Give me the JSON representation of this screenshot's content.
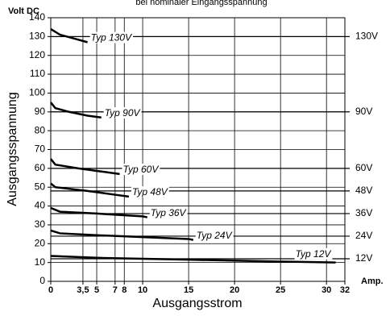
{
  "chart_data": {
    "type": "line",
    "title": "bei nominaler Eingangsspannung",
    "y_unit": "Volt DC",
    "x_unit": "Amp.",
    "y_label": "Ausgangsspannung",
    "x_label": "Ausgangsstrom",
    "xlim": [
      0,
      32
    ],
    "ylim": [
      0,
      140
    ],
    "y2lim": [
      0,
      140
    ],
    "xticks": [
      0,
      {
        "value": 3.5,
        "label": "3,5"
      },
      5,
      7,
      8,
      10,
      15,
      20,
      25,
      30,
      32
    ],
    "yticks": [
      0,
      10,
      20,
      30,
      40,
      50,
      60,
      70,
      80,
      90,
      100,
      110,
      120,
      130,
      140
    ],
    "y2ticks": [
      {
        "value": 12,
        "label": "12V"
      },
      {
        "value": 24,
        "label": "24V"
      },
      {
        "value": 36,
        "label": "36V"
      },
      {
        "value": 48,
        "label": "48V"
      },
      {
        "value": 60,
        "label": "60V"
      },
      {
        "value": 90,
        "label": "90V"
      },
      {
        "value": 130,
        "label": "130V"
      }
    ],
    "grid": true,
    "series": [
      {
        "name": "Typ 130V",
        "color": "#000000",
        "x": [
          0,
          1,
          2.5,
          4
        ],
        "values": [
          134,
          131,
          129,
          127
        ]
      },
      {
        "name": "Typ 90V",
        "color": "#000000",
        "x": [
          0,
          0.5,
          2,
          4,
          5.5
        ],
        "values": [
          95,
          92,
          90,
          88,
          87
        ]
      },
      {
        "name": "Typ 60V",
        "color": "#000000",
        "x": [
          0,
          0.5,
          3,
          6,
          7.5
        ],
        "values": [
          65,
          62,
          60,
          58,
          57
        ]
      },
      {
        "name": "Typ 48V",
        "color": "#000000",
        "x": [
          0,
          0.5,
          4,
          7,
          8.5
        ],
        "values": [
          52,
          50,
          48,
          46,
          45
        ]
      },
      {
        "name": "Typ 36V",
        "color": "#000000",
        "x": [
          0,
          1,
          5,
          10,
          10.5
        ],
        "values": [
          39,
          37,
          36,
          34.5,
          34
        ]
      },
      {
        "name": "Typ 24V",
        "color": "#000000",
        "x": [
          0,
          1,
          5,
          10,
          15,
          15.5
        ],
        "values": [
          27,
          25.5,
          24.5,
          23.5,
          22.5,
          22
        ]
      },
      {
        "name": "Typ 12V",
        "color": "#000000",
        "x": [
          0,
          5,
          15,
          25,
          31
        ],
        "values": [
          13.5,
          12.5,
          11.5,
          10.5,
          10
        ]
      }
    ]
  }
}
